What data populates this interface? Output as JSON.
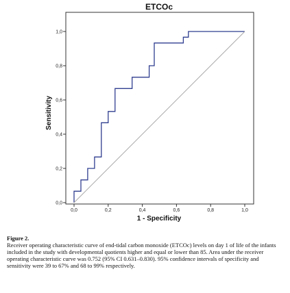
{
  "chart_data": {
    "type": "line",
    "title": "ETCOc",
    "xlabel": "1 - Specificity",
    "ylabel": "Sensitivity",
    "xlim": [
      0,
      1
    ],
    "ylim": [
      0,
      1
    ],
    "x_ticks": [
      "0,0",
      "0,2",
      "0,4",
      "0,6",
      "0,8",
      "1,0"
    ],
    "y_ticks": [
      "0,0",
      "0,2",
      "0,4",
      "0,6",
      "0,8",
      "1,0"
    ],
    "grid": false,
    "series": [
      {
        "role": "roc-curve",
        "color": "#2f3d8f",
        "x": [
          0.0,
          0.0,
          0.04,
          0.04,
          0.08,
          0.08,
          0.12,
          0.12,
          0.16,
          0.16,
          0.2,
          0.2,
          0.24,
          0.24,
          0.28,
          0.34,
          0.34,
          0.44,
          0.44,
          0.47,
          0.47,
          0.64,
          0.64,
          0.67,
          0.67,
          1.0
        ],
        "y": [
          0.0,
          0.067,
          0.067,
          0.133,
          0.133,
          0.2,
          0.2,
          0.267,
          0.267,
          0.467,
          0.467,
          0.533,
          0.533,
          0.667,
          0.667,
          0.667,
          0.733,
          0.733,
          0.8,
          0.8,
          0.933,
          0.933,
          0.967,
          0.967,
          1.0,
          1.0
        ]
      },
      {
        "role": "reference-line",
        "color": "#a9a9a9",
        "x": [
          0,
          1
        ],
        "y": [
          0,
          1
        ]
      }
    ]
  },
  "caption": {
    "title": "Figure 2.",
    "text": "Receiver operating characteristic curve of end-tidal carbon monoxide (ETCOc) levels on day 1 of life of the infants included in the study with developmental quotients higher and equal or lower than 85. Area under the receiver operating characteristic curve was 0.752 (95% CI 0.631–0.830). 95% confidence intervals of specificity and sensitivity were 39 to 67% and 68 to 99% respectively."
  }
}
